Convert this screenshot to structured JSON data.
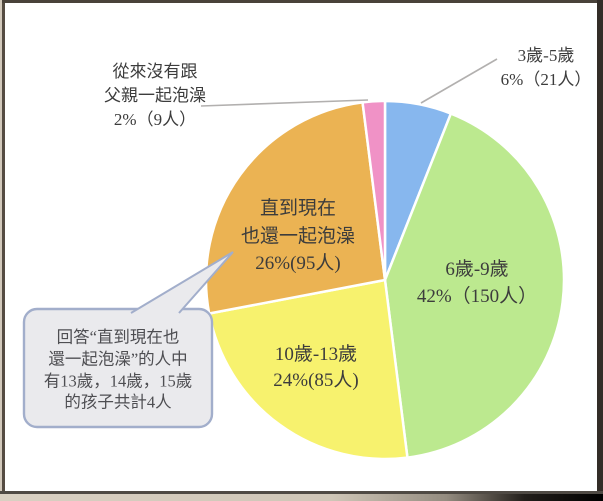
{
  "chart_data": {
    "type": "pie",
    "direction": "clockwise",
    "start_angle_deg": 0,
    "unit": "人",
    "legend": "none",
    "slices": [
      {
        "id": "age-3-5",
        "category": "3歲-5歲",
        "percent": 6,
        "count": 21,
        "color": "#87b7ee",
        "label_placement": "outside-top-right",
        "label_lines": [
          "3歲-5歲",
          "6%（21人）"
        ]
      },
      {
        "id": "age-6-9",
        "category": "6歲-9歲",
        "percent": 42,
        "count": 150,
        "color": "#bce98f",
        "label_placement": "inside",
        "label_lines": [
          "6歲-9歲",
          "42%（150人）"
        ]
      },
      {
        "id": "age-10-13",
        "category": "10歲-13歲",
        "percent": 24,
        "count": 85,
        "color": "#f7f26e",
        "label_placement": "inside",
        "label_lines": [
          "10歲-13歲",
          "24%(85人)"
        ]
      },
      {
        "id": "until-now",
        "category": "直到現在也還一起泡澡",
        "percent": 26,
        "count": 95,
        "color": "#ebb353",
        "label_placement": "inside",
        "label_lines": [
          "直到現在",
          "也還一起泡澡",
          "26%(95人)"
        ]
      },
      {
        "id": "never",
        "category": "從來沒有跟父親一起泡澡",
        "percent": 2,
        "count": 9,
        "color": "#f092c6",
        "label_placement": "outside-top-left",
        "label_lines": [
          "從來沒有跟",
          "父親一起泡澡",
          "2%（9人）"
        ]
      }
    ],
    "annotation": {
      "target": "until-now",
      "text_lines": [
        "回答“直到現在也",
        "還一起泡澡”的人中",
        "有13歲，14歲，15歲",
        "的孩子共計4人"
      ]
    }
  },
  "colors": {
    "slice_separator": "#ffffff",
    "label_text": "#3c3c3c",
    "leader_line": "#b2b0af",
    "callout_fill": "#eaeaed",
    "callout_border": "#a2aecb",
    "callout_text": "#4e4e52"
  }
}
